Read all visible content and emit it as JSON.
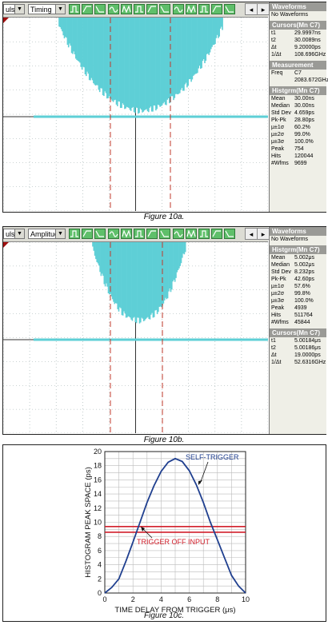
{
  "figure_a": {
    "selector_left": "ulse",
    "selector_mode": "Timing",
    "caption": "Figure 10a.",
    "panels": [
      {
        "header": "Waveforms",
        "rows": [
          {
            "label": "No Waveforms",
            "value": ""
          }
        ]
      },
      {
        "header": "Cursors(Mn C7)",
        "rows": [
          {
            "label": "t1",
            "value": "29.9997ns"
          },
          {
            "label": "t2",
            "value": "30.0089ns"
          },
          {
            "label": "Δt",
            "value": "9.20000ps"
          },
          {
            "label": "1/Δt",
            "value": "108.696GHz"
          }
        ]
      },
      {
        "header": "Measurement",
        "rows": [
          {
            "label": "Freq",
            "value": "C7"
          },
          {
            "label": "",
            "value": "2083.672GHz"
          }
        ]
      },
      {
        "header": "Histgrm(Mn C7)",
        "rows": [
          {
            "label": "Mean",
            "value": "30.00ns"
          },
          {
            "label": "Median",
            "value": "30.00ns"
          },
          {
            "label": "Std Dev",
            "value": "4.659ps"
          },
          {
            "label": "Pk-Pk",
            "value": "28.80ps"
          },
          {
            "label": "μ±1σ",
            "value": "60.2%"
          },
          {
            "label": "μ±2σ",
            "value": "99.0%"
          },
          {
            "label": "μ±3σ",
            "value": "100.0%"
          },
          {
            "label": "Peak",
            "value": "754"
          },
          {
            "label": "Hits",
            "value": "120044"
          },
          {
            "label": "#Wfms",
            "value": "9699"
          }
        ]
      }
    ]
  },
  "figure_b": {
    "selector_left": "ulse",
    "selector_mode": "Amplitude",
    "caption": "Figure 10b.",
    "panels": [
      {
        "header": "Waveforms",
        "rows": [
          {
            "label": "No Waveforms",
            "value": ""
          }
        ]
      },
      {
        "header": "Histgrm(Mn C7)",
        "rows": [
          {
            "label": "Mean",
            "value": "5.002μs"
          },
          {
            "label": "Median",
            "value": "5.002μs"
          },
          {
            "label": "Std Dev",
            "value": "8.232ps"
          },
          {
            "label": "Pk-Pk",
            "value": "42.60ps"
          },
          {
            "label": "μ±1σ",
            "value": "57.6%"
          },
          {
            "label": "μ±2σ",
            "value": "99.8%"
          },
          {
            "label": "μ±3σ",
            "value": "100.0%"
          },
          {
            "label": "Peak",
            "value": "4939"
          },
          {
            "label": "Hits",
            "value": "511764"
          },
          {
            "label": "#Wfms",
            "value": "45844"
          }
        ]
      },
      {
        "header": "Cursors(Mn C7)",
        "rows": [
          {
            "label": "t1",
            "value": "5.00184μs"
          },
          {
            "label": "t2",
            "value": "5.00186μs"
          },
          {
            "label": "Δt",
            "value": "19.0000ps"
          },
          {
            "label": "1/Δt",
            "value": "52.6316GHz"
          }
        ]
      }
    ]
  },
  "colors": {
    "histogram": "#5ecfd6",
    "cursor": "#c0392b",
    "curve_blue": "#1f3f8f",
    "curve_red": "#d21f2b"
  },
  "chart_data": {
    "type": "line",
    "caption": "Figure 10c.",
    "xlabel": "TIME DELAY FROM TRIGGER (μs)",
    "ylabel": "HISTOGRAM PEAK SPACE (ps)",
    "xlim": [
      0,
      10
    ],
    "ylim": [
      0,
      20
    ],
    "xticks": [
      "0",
      "2",
      "4",
      "6",
      "8",
      "10"
    ],
    "yticks": [
      "0",
      "2",
      "4",
      "6",
      "8",
      "10",
      "12",
      "14",
      "16",
      "18",
      "20"
    ],
    "grid": true,
    "series": [
      {
        "name": "SELF-TRIGGER",
        "x": [
          0,
          0.5,
          1,
          1.5,
          2,
          2.5,
          3,
          3.5,
          4,
          4.5,
          5,
          5.5,
          6,
          6.5,
          7,
          7.5,
          8,
          8.5,
          9,
          9.5,
          10
        ],
        "values": [
          0,
          0.8,
          2,
          4.5,
          7.2,
          10,
          12.8,
          15.2,
          17.2,
          18.5,
          19,
          18.6,
          17.3,
          15.3,
          12.8,
          10,
          7.5,
          5,
          2.5,
          1,
          0
        ]
      },
      {
        "name": "TRIGGER OFF INPUT",
        "x": [
          0,
          10
        ],
        "values": [
          8.6,
          8.6
        ]
      },
      {
        "name": "",
        "x": [
          0,
          10
        ],
        "values": [
          9.4,
          9.4
        ]
      }
    ],
    "annotations": [
      "SELF-TRIGGER",
      "TRIGGER OFF INPUT"
    ]
  }
}
